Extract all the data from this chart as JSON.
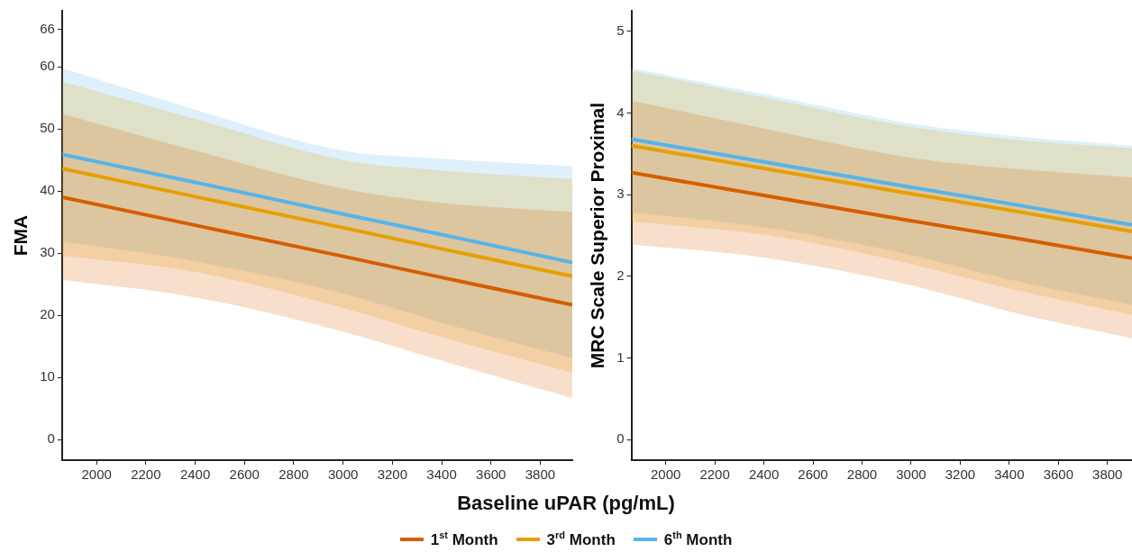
{
  "chart_data": [
    {
      "type": "line",
      "xlabel": "Baseline uPAR (pg/mL)",
      "ylabel": "FMA",
      "xlim": [
        1860,
        3930
      ],
      "xticks": [
        2000,
        2200,
        2400,
        2600,
        2800,
        3000,
        3200,
        3400,
        3600,
        3800
      ],
      "ylim": [
        -3.3,
        69
      ],
      "yticks": [
        0,
        10,
        20,
        30,
        40,
        50,
        60,
        66
      ],
      "grid": false,
      "legend": "bottom",
      "marker": "none",
      "line_style": "solid",
      "x": [
        1860,
        2400,
        3000,
        3400,
        3930
      ],
      "series": [
        {
          "name": "1$^{st}$ Month",
          "color": "#d55e00",
          "values": [
            39.0,
            34.5,
            29.5,
            26.1,
            21.7
          ],
          "lower": [
            25.7,
            22.9,
            17.4,
            12.7,
            6.7
          ],
          "upper": [
            52.4,
            46.5,
            40.4,
            38.1,
            36.6
          ]
        },
        {
          "name": "3$^{rd}$ Month",
          "color": "#e69f00",
          "values": [
            43.6,
            39.1,
            34.1,
            30.7,
            26.3
          ],
          "lower": [
            29.6,
            27.0,
            21.2,
            16.5,
            10.8
          ],
          "upper": [
            57.6,
            51.6,
            45.0,
            43.3,
            41.9
          ]
        },
        {
          "name": "6$^{th}$ Month",
          "color": "#56b4e9",
          "values": [
            45.9,
            41.4,
            36.3,
            33.0,
            28.5
          ],
          "lower": [
            31.9,
            28.7,
            23.5,
            18.8,
            13.1
          ],
          "upper": [
            59.8,
            53.1,
            46.5,
            45.2,
            44.0
          ]
        }
      ]
    },
    {
      "type": "line",
      "ylabel": "MRC Scale Superior Proximal",
      "xlim": [
        1860,
        3900
      ],
      "xticks": [
        2000,
        2200,
        2400,
        2600,
        2800,
        3000,
        3200,
        3400,
        3600,
        3800
      ],
      "ylim": [
        -0.25,
        5.25
      ],
      "yticks": [
        0,
        1,
        2,
        3,
        4,
        5
      ],
      "grid": false,
      "marker": "none",
      "line_style": "solid",
      "x": [
        1860,
        2400,
        3000,
        3400,
        3900
      ],
      "series": [
        {
          "color": "#d55e00",
          "values": [
            3.27,
            2.99,
            2.68,
            2.48,
            2.22
          ],
          "lower": [
            2.39,
            2.23,
            1.89,
            1.57,
            1.24
          ],
          "upper": [
            4.15,
            3.81,
            3.45,
            3.32,
            3.21
          ]
        },
        {
          "color": "#e69f00",
          "values": [
            3.6,
            3.32,
            3.01,
            2.81,
            2.55
          ],
          "lower": [
            2.67,
            2.51,
            2.15,
            1.85,
            1.53
          ],
          "upper": [
            4.52,
            4.19,
            3.83,
            3.68,
            3.57
          ]
        },
        {
          "color": "#56b4e9",
          "values": [
            3.68,
            3.4,
            3.09,
            2.89,
            2.63
          ],
          "lower": [
            2.78,
            2.6,
            2.26,
            1.96,
            1.65
          ],
          "upper": [
            4.55,
            4.23,
            3.87,
            3.72,
            3.6
          ]
        }
      ]
    }
  ]
}
